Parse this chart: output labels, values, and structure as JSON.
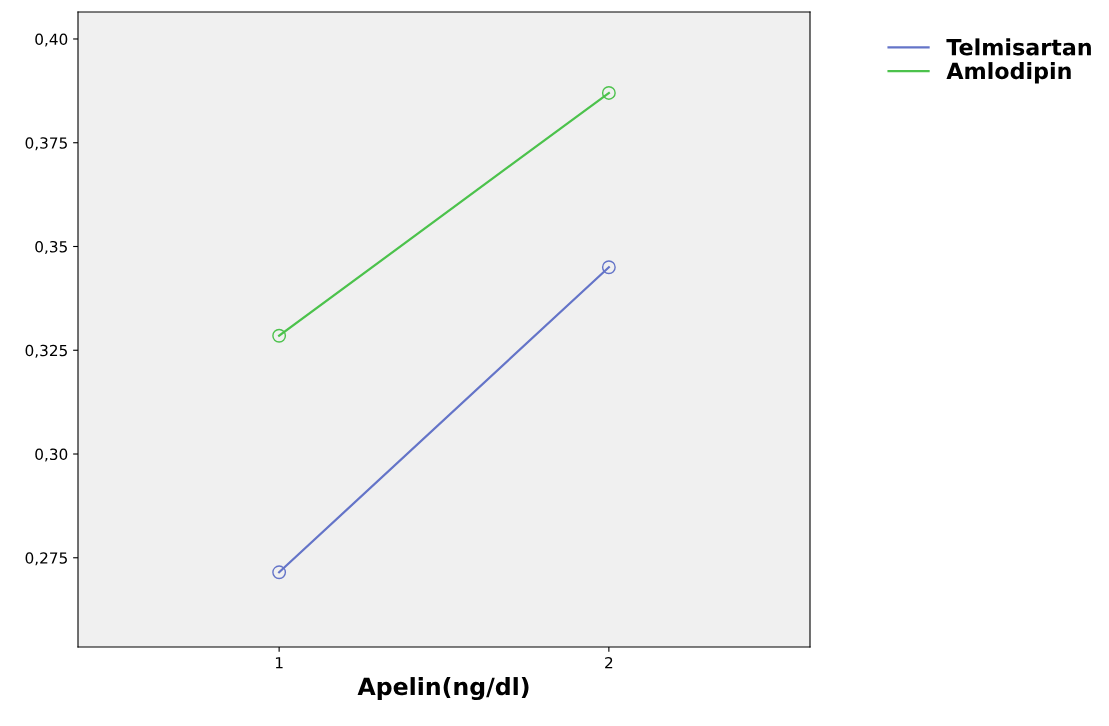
{
  "chart_data": {
    "type": "line",
    "xlabel": "Apelin(ng/dl)",
    "categories": [
      "1",
      "2"
    ],
    "series": [
      {
        "name": "Telmisartan",
        "color": "#6474c8",
        "values": [
          0.2715,
          0.345
        ]
      },
      {
        "name": "Amlodipin",
        "color": "#4cc24c",
        "values": [
          0.3285,
          0.387
        ]
      }
    ],
    "ylim": [
      0.2535,
      0.4065
    ],
    "yticks": [
      {
        "value": 0.275,
        "label": "0,275"
      },
      {
        "value": 0.3,
        "label": "0,30"
      },
      {
        "value": 0.325,
        "label": "0,325"
      },
      {
        "value": 0.35,
        "label": "0,35"
      },
      {
        "value": 0.375,
        "label": "0,375"
      },
      {
        "value": 0.4,
        "label": "0,40"
      }
    ],
    "marker": "circle",
    "line_style": "solid",
    "grid": false,
    "legend": "top right"
  }
}
